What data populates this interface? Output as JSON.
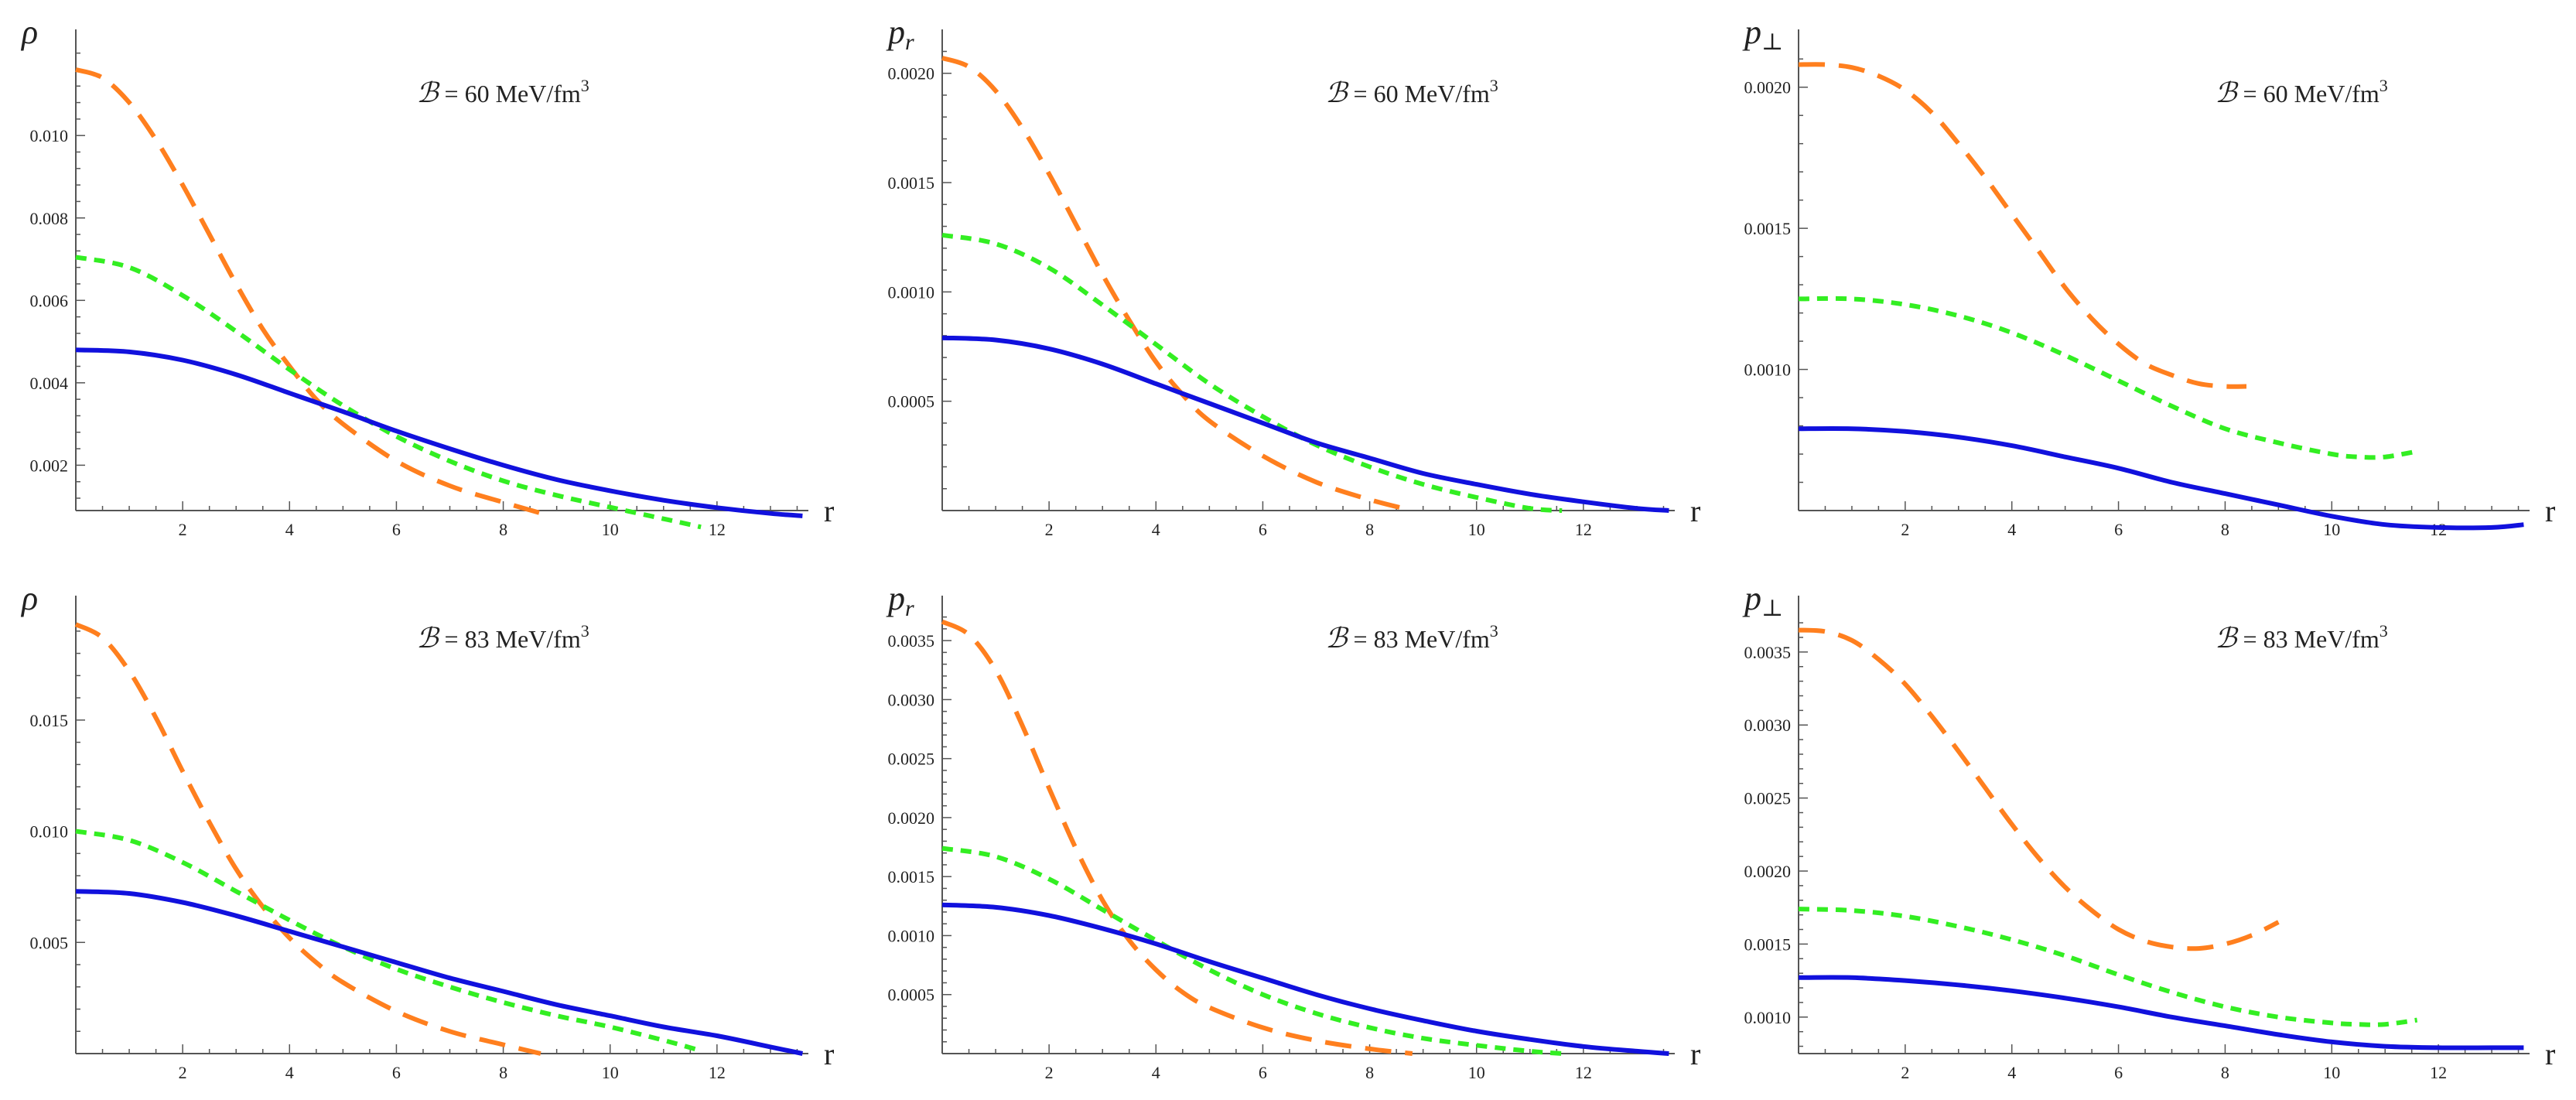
{
  "figure": {
    "series_styles": [
      {
        "name": "solid",
        "color": "#1111dd",
        "dash": "none",
        "width": 6
      },
      {
        "name": "short-dashed",
        "color": "#33ee22",
        "dash": "14 10",
        "width": 6
      },
      {
        "name": "long-dashed",
        "color": "#ff7f1e",
        "dash": "34 18",
        "width": 6
      }
    ]
  },
  "chart_data": [
    {
      "id": "rho-60",
      "type": "line",
      "title": "",
      "ylabel": "ρ",
      "xlabel": "r",
      "annotation": {
        "prefix": "ℬ",
        "text": " = 60 MeV/fm",
        "sup": "3"
      },
      "xlim": [
        0,
        14
      ],
      "ylim": [
        0.0009,
        0.0122
      ],
      "xticks": [
        2,
        4,
        6,
        8,
        10,
        12
      ],
      "yticks": [
        0.002,
        0.004,
        0.006,
        0.008,
        0.01
      ],
      "ytick_labels": [
        "0.002",
        "0.004",
        "0.006",
        "0.008",
        "0.010"
      ],
      "series": [
        {
          "name": "solid",
          "x": [
            0,
            1,
            2,
            3,
            4,
            5,
            6,
            7,
            8,
            9,
            10,
            11,
            12,
            13,
            13.6
          ],
          "y": [
            0.0048,
            0.00475,
            0.00455,
            0.0042,
            0.00375,
            0.0033,
            0.00283,
            0.0024,
            0.002,
            0.00165,
            0.00138,
            0.00115,
            0.00097,
            0.00083,
            0.00077
          ]
        },
        {
          "name": "short-dashed",
          "x": [
            0,
            1,
            2,
            3,
            4,
            5,
            6,
            7,
            8,
            9,
            10,
            11,
            11.7
          ],
          "y": [
            0.00705,
            0.0068,
            0.00612,
            0.00525,
            0.00432,
            0.00345,
            0.0027,
            0.0021,
            0.00162,
            0.00127,
            0.00098,
            0.0007,
            0.0005
          ]
        },
        {
          "name": "long-dashed",
          "x": [
            0,
            0.5,
            1,
            1.5,
            2,
            2.5,
            3,
            3.5,
            4,
            4.5,
            5,
            6,
            7,
            8,
            8.8
          ],
          "y": [
            0.0116,
            0.0114,
            0.0108,
            0.0099,
            0.0088,
            0.0076,
            0.0064,
            0.0053,
            0.0044,
            0.0036,
            0.003,
            0.0021,
            0.0015,
            0.0011,
            0.0008
          ]
        }
      ]
    },
    {
      "id": "pr-60",
      "type": "line",
      "title": "",
      "ylabel": "p",
      "ylabel_sub": "r",
      "xlabel": "r",
      "annotation": {
        "prefix": "ℬ",
        "text": " = 60 MeV/fm",
        "sup": "3"
      },
      "xlim": [
        0,
        14
      ],
      "ylim": [
        0,
        0.00213
      ],
      "xticks": [
        2,
        4,
        6,
        8,
        10,
        12
      ],
      "yticks": [
        0.0005,
        0.001,
        0.0015,
        0.002
      ],
      "ytick_labels": [
        "0.0005",
        "0.0010",
        "0.0015",
        "0.0020"
      ],
      "series": [
        {
          "name": "solid",
          "x": [
            0,
            1,
            2,
            3,
            4,
            5,
            6,
            7,
            8,
            9,
            10,
            11,
            12,
            13,
            13.6
          ],
          "y": [
            0.00079,
            0.00078,
            0.00074,
            0.00067,
            0.00058,
            0.00049,
            0.0004,
            0.00031,
            0.00024,
            0.00017,
            0.00012,
            7.5e-05,
            4e-05,
            1e-05,
            0
          ]
        },
        {
          "name": "short-dashed",
          "x": [
            0,
            1,
            2,
            3,
            4,
            5,
            6,
            7,
            8,
            9,
            10,
            11,
            11.6
          ],
          "y": [
            0.00126,
            0.00122,
            0.00111,
            0.00094,
            0.00076,
            0.00058,
            0.00043,
            0.0003,
            0.0002,
            0.00012,
            6e-05,
            1e-05,
            0
          ]
        },
        {
          "name": "long-dashed",
          "x": [
            0,
            0.5,
            1,
            1.5,
            2,
            2.5,
            3,
            3.5,
            4,
            4.5,
            5,
            6,
            7,
            8,
            8.8
          ],
          "y": [
            0.00207,
            0.00203,
            0.00192,
            0.00175,
            0.00154,
            0.00131,
            0.00108,
            0.00087,
            0.00068,
            0.00053,
            0.00041,
            0.00025,
            0.00013,
            5e-05,
            0
          ]
        }
      ]
    },
    {
      "id": "pperp-60",
      "type": "line",
      "title": "",
      "ylabel": "p",
      "ylabel_sub": "⊥",
      "xlabel": "r",
      "annotation": {
        "prefix": "ℬ",
        "text": " = 60 MeV/fm",
        "sup": "3"
      },
      "xlim": [
        0,
        14
      ],
      "ylim": [
        0.0005,
        0.00215
      ],
      "xticks": [
        2,
        4,
        6,
        8,
        10,
        12
      ],
      "yticks": [
        0.001,
        0.0015,
        0.002
      ],
      "ytick_labels": [
        "0.0010",
        "0.0015",
        "0.0020"
      ],
      "series": [
        {
          "name": "solid",
          "x": [
            0,
            1,
            2,
            3,
            4,
            5,
            6,
            7,
            8,
            9,
            10,
            11,
            12,
            13,
            13.6
          ],
          "y": [
            0.00079,
            0.00079,
            0.00078,
            0.00076,
            0.00073,
            0.00069,
            0.00065,
            0.0006,
            0.00056,
            0.00052,
            0.00048,
            0.00045,
            0.00044,
            0.00044,
            0.00045
          ]
        },
        {
          "name": "short-dashed",
          "x": [
            0,
            1,
            2,
            3,
            4,
            5,
            6,
            7,
            8,
            9,
            10,
            10.5,
            11,
            11.6
          ],
          "y": [
            0.00125,
            0.00125,
            0.00123,
            0.00119,
            0.00113,
            0.00105,
            0.00096,
            0.00087,
            0.00079,
            0.00074,
            0.0007,
            0.00069,
            0.00069,
            0.00071
          ]
        },
        {
          "name": "long-dashed",
          "x": [
            0,
            0.5,
            1,
            1.5,
            2,
            2.5,
            3,
            3.5,
            4,
            4.5,
            5,
            5.5,
            6,
            6.5,
            7,
            7.5,
            8,
            8.4
          ],
          "y": [
            0.00208,
            0.00208,
            0.00207,
            0.00204,
            0.00199,
            0.00191,
            0.0018,
            0.00168,
            0.00155,
            0.00142,
            0.00129,
            0.00118,
            0.00109,
            0.00102,
            0.00098,
            0.00095,
            0.00094,
            0.00094
          ]
        }
      ]
    },
    {
      "id": "rho-83",
      "type": "line",
      "title": "",
      "ylabel": "ρ",
      "xlabel": "r",
      "annotation": {
        "prefix": "ℬ",
        "text": " = 83 MeV/fm",
        "sup": "3"
      },
      "xlim": [
        0,
        14
      ],
      "ylim": [
        0,
        0.0199
      ],
      "xticks": [
        2,
        4,
        6,
        8,
        10,
        12
      ],
      "yticks": [
        0.005,
        0.01,
        0.015
      ],
      "ytick_labels": [
        "0.005",
        "0.010",
        "0.015"
      ],
      "series": [
        {
          "name": "solid",
          "x": [
            0,
            1,
            2,
            3,
            4,
            5,
            6,
            7,
            8,
            9,
            10,
            11,
            12,
            13,
            13.6
          ],
          "y": [
            0.0073,
            0.0072,
            0.0068,
            0.0062,
            0.0055,
            0.0048,
            0.0041,
            0.0034,
            0.0028,
            0.0022,
            0.0017,
            0.0012,
            0.0008,
            0.0003,
            0
          ]
        },
        {
          "name": "short-dashed",
          "x": [
            0,
            1,
            2,
            3,
            4,
            5,
            6,
            7,
            8,
            9,
            10,
            11,
            11.6
          ],
          "y": [
            0.01,
            0.0096,
            0.0086,
            0.0073,
            0.006,
            0.0048,
            0.0038,
            0.003,
            0.0023,
            0.0017,
            0.0012,
            0.0006,
            0.0002
          ]
        },
        {
          "name": "long-dashed",
          "x": [
            0,
            0.5,
            1,
            1.5,
            2,
            2.5,
            3,
            3.5,
            4,
            4.5,
            5,
            6,
            7,
            8,
            8.7
          ],
          "y": [
            0.0193,
            0.0187,
            0.0172,
            0.0151,
            0.0127,
            0.0104,
            0.0083,
            0.0066,
            0.0052,
            0.0041,
            0.0032,
            0.0019,
            0.001,
            0.0004,
            0
          ]
        }
      ]
    },
    {
      "id": "pr-83",
      "type": "line",
      "title": "",
      "ylabel": "p",
      "ylabel_sub": "r",
      "xlabel": "r",
      "annotation": {
        "prefix": "ℬ",
        "text": " = 83 MeV/fm",
        "sup": "3"
      },
      "xlim": [
        0,
        14
      ],
      "ylim": [
        0,
        0.00375
      ],
      "xticks": [
        2,
        4,
        6,
        8,
        10,
        12
      ],
      "yticks": [
        0.0005,
        0.001,
        0.0015,
        0.002,
        0.0025,
        0.003,
        0.0035
      ],
      "ytick_labels": [
        "0.0005",
        "0.0010",
        "0.0015",
        "0.0020",
        "0.0025",
        "0.0030",
        "0.0035"
      ],
      "series": [
        {
          "name": "solid",
          "x": [
            0,
            1,
            2,
            3,
            4,
            5,
            6,
            7,
            8,
            9,
            10,
            11,
            12,
            13,
            13.6
          ],
          "y": [
            0.00126,
            0.00124,
            0.00117,
            0.00106,
            0.00093,
            0.00078,
            0.00064,
            0.0005,
            0.00038,
            0.00028,
            0.00019,
            0.00012,
            6e-05,
            2e-05,
            0
          ]
        },
        {
          "name": "short-dashed",
          "x": [
            0,
            1,
            2,
            3,
            4,
            5,
            6,
            7,
            8,
            9,
            10,
            11,
            11.6
          ],
          "y": [
            0.00174,
            0.00167,
            0.00148,
            0.00122,
            0.00096,
            0.00071,
            0.0005,
            0.00034,
            0.00022,
            0.00013,
            7e-05,
            2e-05,
            0
          ]
        },
        {
          "name": "long-dashed",
          "x": [
            0,
            0.5,
            1,
            1.5,
            2,
            2.5,
            3,
            3.5,
            4,
            4.5,
            5,
            6,
            7,
            8,
            8.8
          ],
          "y": [
            0.00366,
            0.00355,
            0.00325,
            0.00278,
            0.00225,
            0.00174,
            0.0013,
            0.00096,
            0.00071,
            0.00052,
            0.00039,
            0.00022,
            0.00011,
            4e-05,
            0
          ]
        }
      ]
    },
    {
      "id": "pperp-83",
      "type": "line",
      "title": "",
      "ylabel": "p",
      "ylabel_sub": "⊥",
      "xlabel": "r",
      "annotation": {
        "prefix": "ℬ",
        "text": " = 83 MeV/fm",
        "sup": "3"
      },
      "xlim": [
        0,
        14
      ],
      "ylim": [
        0.00075,
        0.00378
      ],
      "xticks": [
        2,
        4,
        6,
        8,
        10,
        12
      ],
      "yticks": [
        0.001,
        0.0015,
        0.002,
        0.0025,
        0.003,
        0.0035
      ],
      "ytick_labels": [
        "0.0010",
        "0.0015",
        "0.0020",
        "0.0025",
        "0.0030",
        "0.0035"
      ],
      "series": [
        {
          "name": "solid",
          "x": [
            0,
            1,
            2,
            3,
            4,
            5,
            6,
            7,
            8,
            9,
            10,
            11,
            12,
            13,
            13.6
          ],
          "y": [
            0.00127,
            0.00127,
            0.00125,
            0.00122,
            0.00118,
            0.00113,
            0.00107,
            0.001,
            0.00094,
            0.00088,
            0.00083,
            0.0008,
            0.00079,
            0.00079,
            0.00079
          ]
        },
        {
          "name": "short-dashed",
          "x": [
            0,
            1,
            2,
            3,
            4,
            5,
            6,
            7,
            8,
            9,
            10,
            10.5,
            11,
            11.6
          ],
          "y": [
            0.00174,
            0.00173,
            0.00169,
            0.00162,
            0.00153,
            0.00142,
            0.00129,
            0.00117,
            0.00107,
            0.001,
            0.00096,
            0.00095,
            0.00095,
            0.00098
          ]
        },
        {
          "name": "long-dashed",
          "x": [
            0,
            0.5,
            1,
            1.5,
            2,
            2.5,
            3,
            3.5,
            4,
            4.5,
            5,
            5.5,
            6,
            6.5,
            7,
            7.5,
            8,
            8.5,
            9
          ],
          "y": [
            0.00365,
            0.00364,
            0.00358,
            0.00345,
            0.00328,
            0.00306,
            0.00282,
            0.00257,
            0.00232,
            0.00209,
            0.00189,
            0.00173,
            0.0016,
            0.00152,
            0.00148,
            0.00147,
            0.0015,
            0.00156,
            0.00165
          ]
        }
      ]
    }
  ]
}
